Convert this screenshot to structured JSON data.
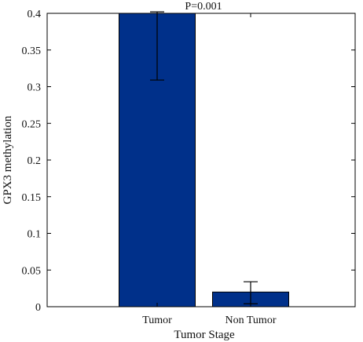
{
  "chart_data": {
    "type": "bar",
    "categories": [
      "Tumor",
      "Non Tumor"
    ],
    "values": [
      0.4,
      0.02
    ],
    "errors": [
      {
        "low": 0.309,
        "high": 0.402
      },
      {
        "low": 0.004,
        "high": 0.034
      }
    ],
    "xlabel": "Tumor Stage",
    "ylabel": "GPX3 methylation",
    "ylim": [
      0,
      0.4
    ],
    "yticks": [
      0,
      0.05,
      0.1,
      0.15,
      0.2,
      0.25,
      0.3,
      0.35,
      0.4
    ],
    "ytick_labels": [
      "0",
      "0.05",
      "0.1",
      "0.15",
      "0.2",
      "0.25",
      "0.3",
      "0.35",
      "0.4"
    ],
    "annotation": "P=0.001",
    "bar_color": "#00308a",
    "grid": false,
    "legend": "none"
  }
}
